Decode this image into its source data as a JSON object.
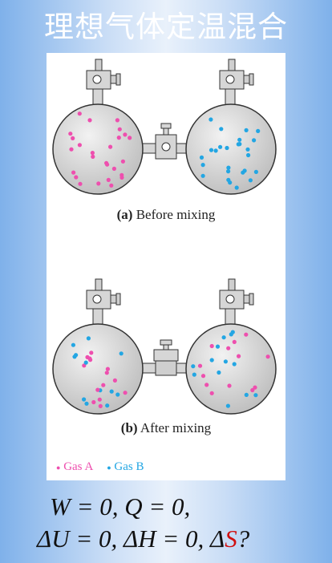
{
  "title": "理想气体定温混合",
  "captions": {
    "before_prefix": "(a)",
    "before_text": "Before mixing",
    "after_prefix": "(b)",
    "after_text": "After mixing"
  },
  "legend": {
    "gas_a": "Gas A",
    "gas_b": "Gas B"
  },
  "equations": {
    "line1": "W = 0, Q = 0,",
    "line2_pre": "ΔU = 0, ΔH = 0, Δ",
    "line2_red": "S",
    "line2_post": "?"
  },
  "colors": {
    "gas_a": "#ee4fae",
    "gas_b": "#23a6e3",
    "flask": "#d8d8d8",
    "title": "#ffffff",
    "highlight": "#d01010"
  },
  "icons": [
    "flask-icon",
    "stopcock-icon",
    "valve-icon"
  ]
}
